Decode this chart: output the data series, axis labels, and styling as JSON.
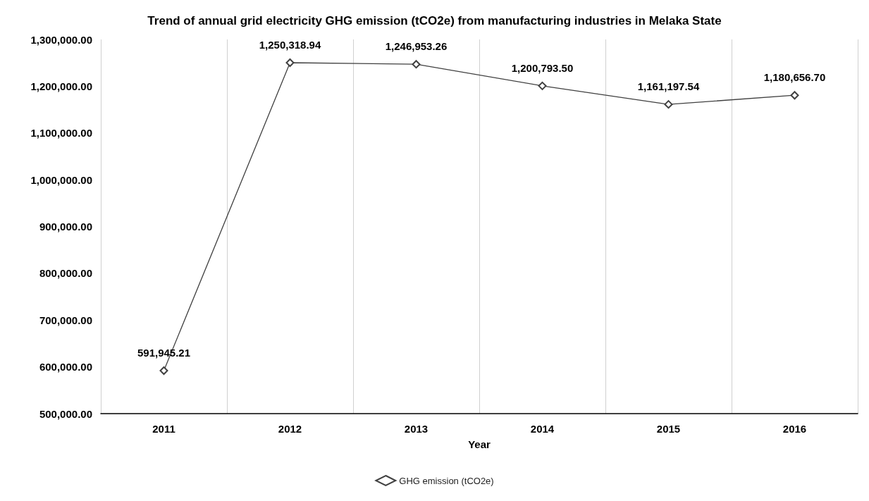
{
  "chart_data": {
    "type": "line",
    "title": "Trend of annual grid electricity GHG emission (tCO2e) from manufacturing industries in Melaka State",
    "xlabel": "Year",
    "categories": [
      "2011",
      "2012",
      "2013",
      "2014",
      "2015",
      "2016"
    ],
    "series": [
      {
        "name": "GHG emission (tCO2e)",
        "color": "#404040",
        "values": [
          591945.21,
          1250318.94,
          1246953.26,
          1200793.5,
          1161197.54,
          1180656.7
        ],
        "value_labels": [
          "591,945.21",
          "1,250,318.94",
          "1,246,953.26",
          "1,200,793.50",
          "1,161,197.54",
          "1,180,656.70"
        ]
      }
    ],
    "ylim": [
      500000,
      1300000
    ],
    "yticks": [
      {
        "value": 500000,
        "label": "500,000.00"
      },
      {
        "value": 600000,
        "label": "600,000.00"
      },
      {
        "value": 700000,
        "label": "700,000.00"
      },
      {
        "value": 800000,
        "label": "800,000.00"
      },
      {
        "value": 900000,
        "label": "900,000.00"
      },
      {
        "value": 1000000,
        "label": "1,000,000.00"
      },
      {
        "value": 1100000,
        "label": "1,100,000.00"
      },
      {
        "value": 1200000,
        "label": "1,200,000.00"
      },
      {
        "value": 1300000,
        "label": "1,300,000.00"
      }
    ],
    "grid": "x",
    "legend": "bottom",
    "marker": "diamond",
    "line_style": "solid"
  }
}
